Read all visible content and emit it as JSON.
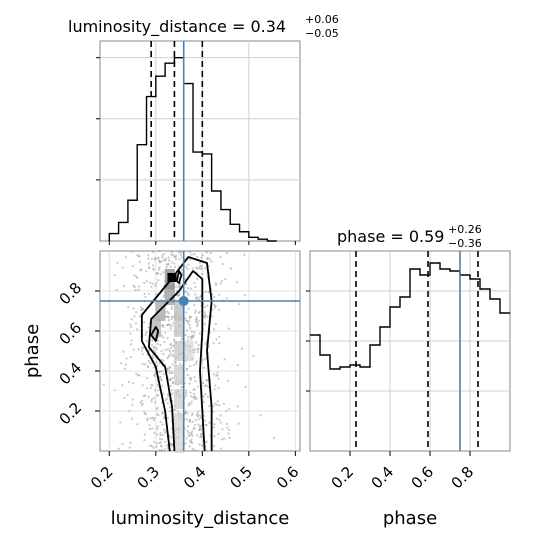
{
  "chart_data": {
    "type": "corner",
    "grid": true,
    "truth": {
      "luminosity_distance": 0.36,
      "phase": 0.75
    },
    "truth_color": "#4682b4",
    "panels": {
      "luminosity_distance_hist": {
        "title": {
          "prefix": "luminosity_distance = ",
          "median": "0.34",
          "upper": "+0.06",
          "lower": "−0.05"
        },
        "quantiles": [
          0.29,
          0.34,
          0.4
        ],
        "xlim": [
          0.18,
          0.61
        ],
        "bin_edges": [
          0.2,
          0.22,
          0.24,
          0.26,
          0.28,
          0.3,
          0.32,
          0.34,
          0.36,
          0.38,
          0.4,
          0.42,
          0.44,
          0.46,
          0.48,
          0.5,
          0.52,
          0.54,
          0.56
        ],
        "counts": [
          0.04,
          0.1,
          0.22,
          0.52,
          0.78,
          0.89,
          0.96,
          0.99,
          0.85,
          0.48,
          0.47,
          0.27,
          0.17,
          0.09,
          0.05,
          0.02,
          0.01,
          0.0
        ]
      },
      "phase_hist": {
        "title": {
          "prefix": "phase = ",
          "median": "0.59",
          "upper": "+0.26",
          "lower": "−0.36"
        },
        "quantiles": [
          0.23,
          0.59,
          0.84
        ],
        "xlim": [
          0.0,
          1.0
        ],
        "bin_edges": [
          0.0,
          0.05,
          0.1,
          0.15,
          0.2,
          0.25,
          0.3,
          0.35,
          0.4,
          0.45,
          0.5,
          0.55,
          0.6,
          0.65,
          0.7,
          0.75,
          0.8,
          0.85,
          0.9,
          0.95,
          1.0
        ],
        "counts": [
          0.58,
          0.48,
          0.41,
          0.42,
          0.43,
          0.42,
          0.53,
          0.62,
          0.72,
          0.77,
          0.91,
          0.88,
          0.94,
          0.91,
          0.9,
          0.88,
          0.86,
          0.81,
          0.76,
          0.69
        ]
      },
      "joint": {
        "xlabel": "luminosity_distance",
        "ylabel": "phase",
        "xlim": [
          0.18,
          0.61
        ],
        "ylim": [
          0.0,
          1.0
        ],
        "x_ticks": [
          0.2,
          0.3,
          0.4,
          0.5,
          0.6
        ],
        "y_ticks": [
          0.2,
          0.4,
          0.6,
          0.8
        ],
        "contours": [
          [
            [
              0.33,
              0.0
            ],
            [
              0.32,
              0.2
            ],
            [
              0.3,
              0.42
            ],
            [
              0.27,
              0.55
            ],
            [
              0.27,
              0.68
            ],
            [
              0.33,
              0.85
            ],
            [
              0.37,
              0.97
            ],
            [
              0.41,
              0.94
            ],
            [
              0.42,
              0.75
            ],
            [
              0.41,
              0.5
            ],
            [
              0.42,
              0.22
            ],
            [
              0.42,
              0.0
            ]
          ],
          [
            [
              0.34,
              0.0
            ],
            [
              0.335,
              0.22
            ],
            [
              0.32,
              0.42
            ],
            [
              0.285,
              0.52
            ],
            [
              0.29,
              0.66
            ],
            [
              0.35,
              0.8
            ],
            [
              0.38,
              0.9
            ],
            [
              0.4,
              0.86
            ],
            [
              0.4,
              0.6
            ],
            [
              0.395,
              0.4
            ],
            [
              0.4,
              0.2
            ],
            [
              0.405,
              0.0
            ]
          ],
          [
            [
              0.29,
              0.58
            ],
            [
              0.3,
              0.55
            ],
            [
              0.305,
              0.6
            ],
            [
              0.3,
              0.62
            ]
          ],
          [
            [
              0.345,
              0.85
            ],
            [
              0.35,
              0.9
            ],
            [
              0.355,
              0.88
            ],
            [
              0.35,
              0.84
            ]
          ]
        ]
      },
      "phase_marginal_x": {
        "xlabel": "phase",
        "x_ticks": [
          0.2,
          0.4,
          0.6,
          0.8
        ]
      }
    }
  }
}
